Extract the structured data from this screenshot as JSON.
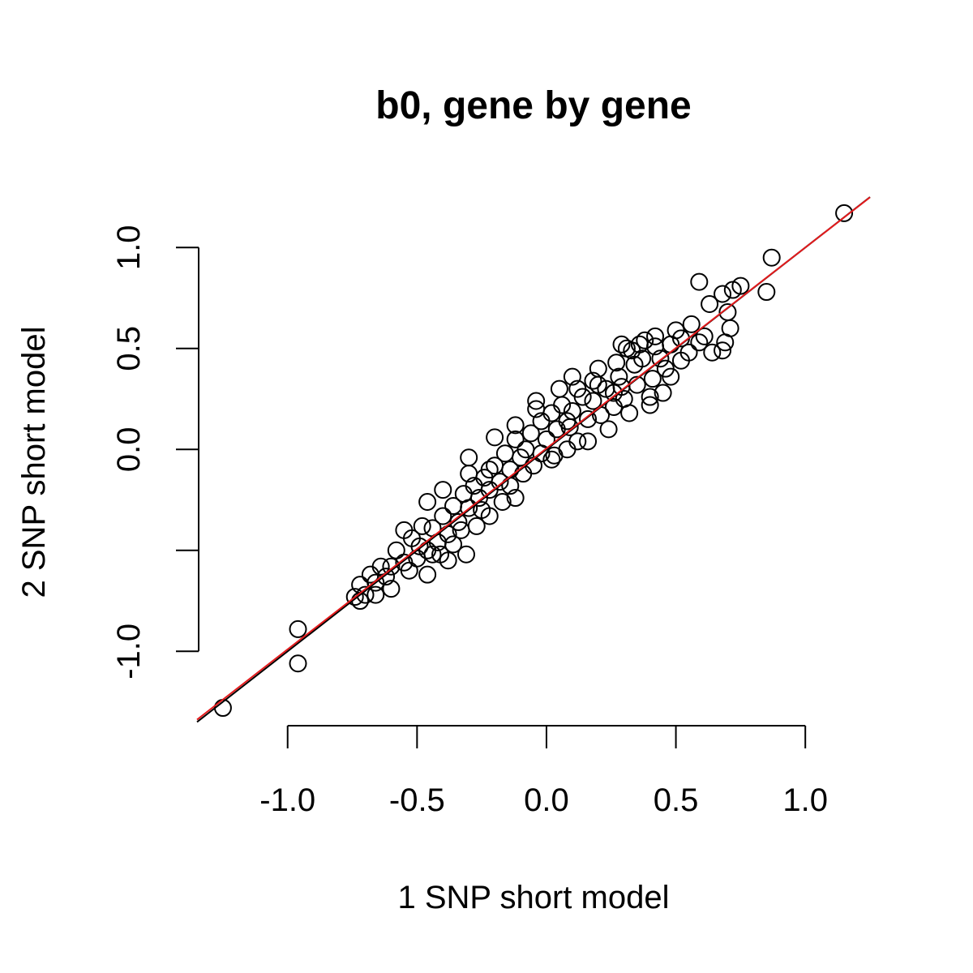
{
  "chart_data": {
    "type": "scatter",
    "title": "b0, gene by gene",
    "xlabel": "1 SNP short model",
    "ylabel": "2 SNP short model",
    "xlim": [
      -1.35,
      1.25
    ],
    "ylim": [
      -1.32,
      1.25
    ],
    "x_ticks": [
      -1.0,
      -0.5,
      0.0,
      0.5,
      1.0
    ],
    "x_tick_labels": [
      "-1.0",
      "-0.5",
      "0.0",
      "0.5",
      "1.0"
    ],
    "y_ticks": [
      -1.0,
      -0.5,
      0.0,
      0.5,
      1.0
    ],
    "y_tick_labels": [
      "-1.0",
      "",
      "0.0",
      "0.5",
      "1.0"
    ],
    "grid": false,
    "point_color": "#000000",
    "marker": "open-circle",
    "lines": [
      {
        "color": "#000000",
        "slope": 1.0,
        "intercept": 0.0
      },
      {
        "color": "#e41a1c",
        "slope": 0.995,
        "intercept": 0.005
      }
    ],
    "points": [
      [
        1.15,
        1.17
      ],
      [
        0.87,
        0.95
      ],
      [
        0.59,
        0.83
      ],
      [
        0.85,
        0.78
      ],
      [
        0.72,
        0.79
      ],
      [
        0.68,
        0.77
      ],
      [
        0.7,
        0.68
      ],
      [
        0.63,
        0.72
      ],
      [
        0.71,
        0.6
      ],
      [
        0.69,
        0.53
      ],
      [
        0.68,
        0.49
      ],
      [
        0.64,
        0.48
      ],
      [
        0.59,
        0.53
      ],
      [
        0.56,
        0.62
      ],
      [
        0.52,
        0.55
      ],
      [
        0.5,
        0.59
      ],
      [
        0.46,
        0.4
      ],
      [
        0.42,
        0.51
      ],
      [
        0.42,
        0.56
      ],
      [
        0.38,
        0.54
      ],
      [
        0.36,
        0.52
      ],
      [
        0.33,
        0.49
      ],
      [
        0.31,
        0.5
      ],
      [
        0.29,
        0.52
      ],
      [
        0.27,
        0.43
      ],
      [
        0.41,
        0.35
      ],
      [
        0.45,
        0.28
      ],
      [
        0.4,
        0.22
      ],
      [
        0.35,
        0.32
      ],
      [
        0.3,
        0.25
      ],
      [
        0.26,
        0.21
      ],
      [
        0.23,
        0.3
      ],
      [
        0.2,
        0.32
      ],
      [
        0.18,
        0.24
      ],
      [
        0.16,
        0.15
      ],
      [
        0.14,
        0.26
      ],
      [
        0.12,
        0.3
      ],
      [
        0.1,
        0.19
      ],
      [
        0.08,
        0.14
      ],
      [
        0.06,
        0.22
      ],
      [
        0.04,
        0.1
      ],
      [
        0.02,
        0.18
      ],
      [
        0.0,
        0.05
      ],
      [
        -0.02,
        0.14
      ],
      [
        -0.04,
        0.2
      ],
      [
        -0.06,
        0.08
      ],
      [
        -0.08,
        0.0
      ],
      [
        -0.1,
        -0.04
      ],
      [
        -0.12,
        0.05
      ],
      [
        -0.14,
        -0.1
      ],
      [
        -0.16,
        -0.02
      ],
      [
        -0.18,
        -0.16
      ],
      [
        -0.2,
        -0.08
      ],
      [
        -0.22,
        -0.2
      ],
      [
        -0.24,
        -0.14
      ],
      [
        -0.26,
        -0.24
      ],
      [
        -0.28,
        -0.18
      ],
      [
        -0.3,
        -0.29
      ],
      [
        -0.32,
        -0.22
      ],
      [
        -0.34,
        -0.36
      ],
      [
        -0.36,
        -0.28
      ],
      [
        -0.38,
        -0.42
      ],
      [
        -0.4,
        -0.33
      ],
      [
        -0.42,
        -0.46
      ],
      [
        -0.44,
        -0.39
      ],
      [
        -0.46,
        -0.5
      ],
      [
        -0.48,
        -0.38
      ],
      [
        -0.5,
        -0.54
      ],
      [
        -0.52,
        -0.44
      ],
      [
        -0.55,
        -0.56
      ],
      [
        -0.58,
        -0.5
      ],
      [
        -0.6,
        -0.58
      ],
      [
        -0.62,
        -0.63
      ],
      [
        -0.64,
        -0.58
      ],
      [
        -0.66,
        -0.66
      ],
      [
        -0.68,
        -0.62
      ],
      [
        -0.7,
        -0.72
      ],
      [
        -0.72,
        -0.67
      ],
      [
        -0.74,
        -0.73
      ],
      [
        -0.72,
        -0.75
      ],
      [
        -0.53,
        -0.6
      ],
      [
        -0.46,
        -0.62
      ],
      [
        -0.36,
        -0.47
      ],
      [
        -0.31,
        -0.52
      ],
      [
        -0.22,
        -0.33
      ],
      [
        -0.3,
        -0.12
      ],
      [
        -0.22,
        -0.1
      ],
      [
        -0.12,
        -0.24
      ],
      [
        -0.05,
        -0.08
      ],
      [
        0.02,
        -0.05
      ],
      [
        0.08,
        0.0
      ],
      [
        0.16,
        0.04
      ],
      [
        0.24,
        0.1
      ],
      [
        0.32,
        0.18
      ],
      [
        0.4,
        0.26
      ],
      [
        0.48,
        0.36
      ],
      [
        0.1,
        0.36
      ],
      [
        0.2,
        0.4
      ],
      [
        0.28,
        0.36
      ],
      [
        0.34,
        0.42
      ],
      [
        -0.2,
        0.06
      ],
      [
        -0.12,
        0.12
      ],
      [
        -0.04,
        0.24
      ],
      [
        0.05,
        0.3
      ],
      [
        -0.3,
        -0.04
      ],
      [
        -0.46,
        -0.26
      ],
      [
        -0.4,
        -0.2
      ],
      [
        -0.55,
        -0.4
      ],
      [
        0.48,
        0.52
      ],
      [
        0.55,
        0.48
      ],
      [
        0.75,
        0.81
      ],
      [
        0.61,
        0.56
      ],
      [
        0.26,
        0.28
      ],
      [
        0.18,
        0.34
      ],
      [
        0.12,
        0.04
      ],
      [
        0.03,
        -0.03
      ],
      [
        -0.09,
        -0.12
      ],
      [
        -0.17,
        -0.26
      ],
      [
        -0.25,
        -0.3
      ],
      [
        -0.33,
        -0.4
      ],
      [
        -0.41,
        -0.52
      ],
      [
        -0.49,
        -0.48
      ],
      [
        -0.6,
        -0.69
      ],
      [
        -0.66,
        -0.72
      ],
      [
        -0.44,
        -0.52
      ],
      [
        -0.38,
        -0.55
      ],
      [
        -0.27,
        -0.38
      ],
      [
        -0.14,
        -0.18
      ],
      [
        -0.02,
        -0.02
      ],
      [
        0.09,
        0.11
      ],
      [
        0.21,
        0.17
      ],
      [
        0.29,
        0.31
      ],
      [
        0.37,
        0.45
      ],
      [
        0.44,
        0.45
      ],
      [
        0.52,
        0.44
      ],
      [
        -0.96,
        -0.89
      ],
      [
        -0.96,
        -1.06
      ],
      [
        -1.25,
        -1.28
      ]
    ]
  }
}
